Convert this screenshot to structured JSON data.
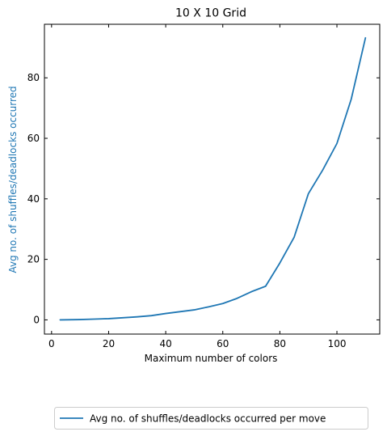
{
  "chart_data": {
    "type": "line",
    "title": "10 X 10 Grid",
    "xlabel": "Maximum number of colors",
    "ylabel": "Avg no. of shuffles/deadlocks occurred",
    "xlim": [
      -2.5,
      115
    ],
    "ylim": [
      -4.7,
      97.7
    ],
    "xticks": [
      0,
      20,
      40,
      60,
      80,
      100
    ],
    "yticks": [
      0,
      20,
      40,
      60,
      80
    ],
    "grid": false,
    "legend_position": "bottom-center, below plot",
    "line_color": "#1f77b4",
    "ylabel_color": "#1f77b4",
    "series": [
      {
        "name": "Avg no. of shuffles/deadlocks occurred per move",
        "x": [
          3,
          10,
          15,
          20,
          25,
          30,
          35,
          40,
          45,
          50,
          55,
          60,
          65,
          70,
          75,
          80,
          85,
          90,
          95,
          100,
          105,
          110
        ],
        "y": [
          0.0,
          0.1,
          0.25,
          0.4,
          0.7,
          1.0,
          1.4,
          2.1,
          2.7,
          3.3,
          4.3,
          5.4,
          7.1,
          9.3,
          11.1,
          18.8,
          27.3,
          41.7,
          49.5,
          58.3,
          72.9,
          93.2
        ]
      }
    ]
  }
}
